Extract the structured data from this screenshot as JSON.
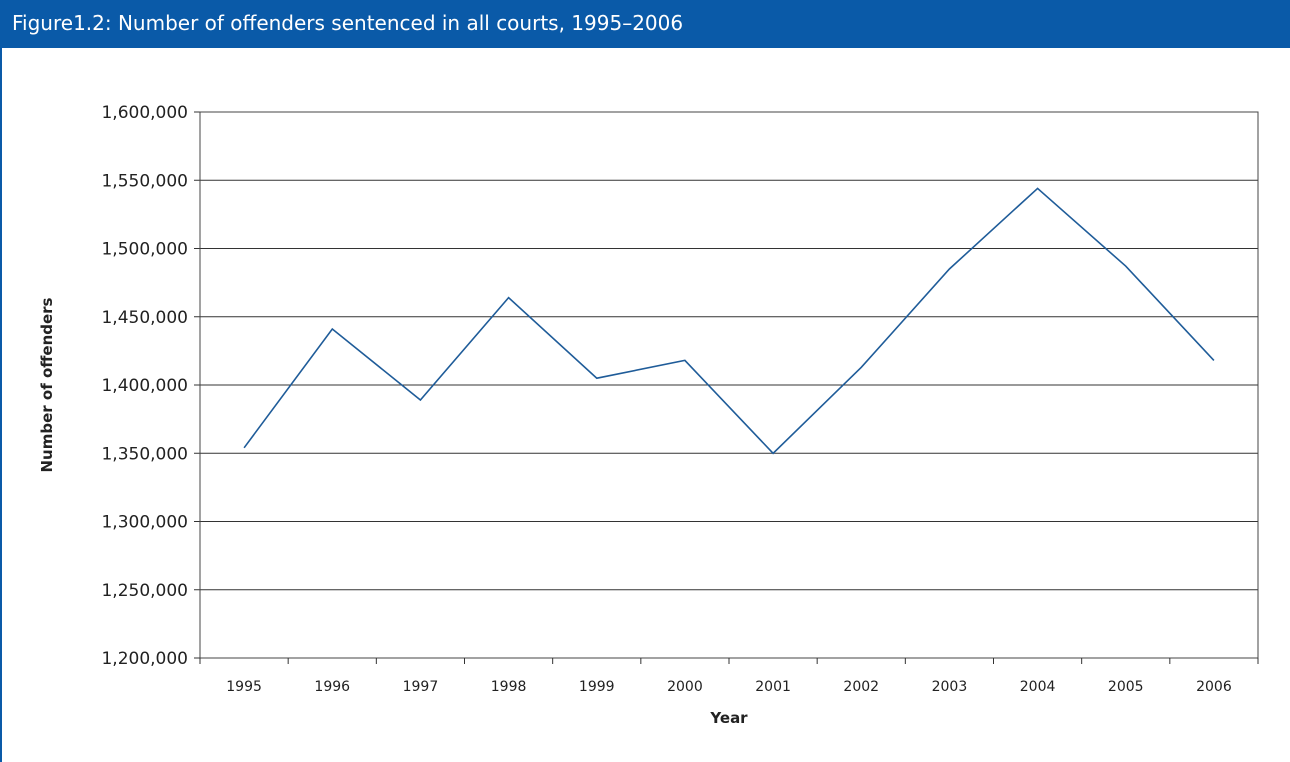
{
  "figure": {
    "title": "Figure1.2: Number of offenders sentenced in all courts, 1995–2006"
  },
  "colors": {
    "header_bg": "#0a5aa8",
    "line": "#1f5c99",
    "grid": "#333333"
  },
  "chart_data": {
    "type": "line",
    "title": "Figure1.2: Number of offenders sentenced in all courts, 1995–2006",
    "xlabel": "Year",
    "ylabel": "Number of offenders",
    "categories": [
      "1995",
      "1996",
      "1997",
      "1998",
      "1999",
      "2000",
      "2001",
      "2002",
      "2003",
      "2004",
      "2005",
      "2006"
    ],
    "values": [
      1354000,
      1441000,
      1389000,
      1464000,
      1405000,
      1418000,
      1350000,
      1413000,
      1485000,
      1544000,
      1487000,
      1418000
    ],
    "ylim": [
      1200000,
      1600000
    ],
    "yticks": [
      1200000,
      1250000,
      1300000,
      1350000,
      1400000,
      1450000,
      1500000,
      1550000,
      1600000
    ],
    "ytick_labels": [
      "1,200,000",
      "1,250,000",
      "1,300,000",
      "1,350,000",
      "1,400,000",
      "1,450,000",
      "1,500,000",
      "1,550,000",
      "1,600,000"
    ],
    "grid": true,
    "legend": "none"
  }
}
